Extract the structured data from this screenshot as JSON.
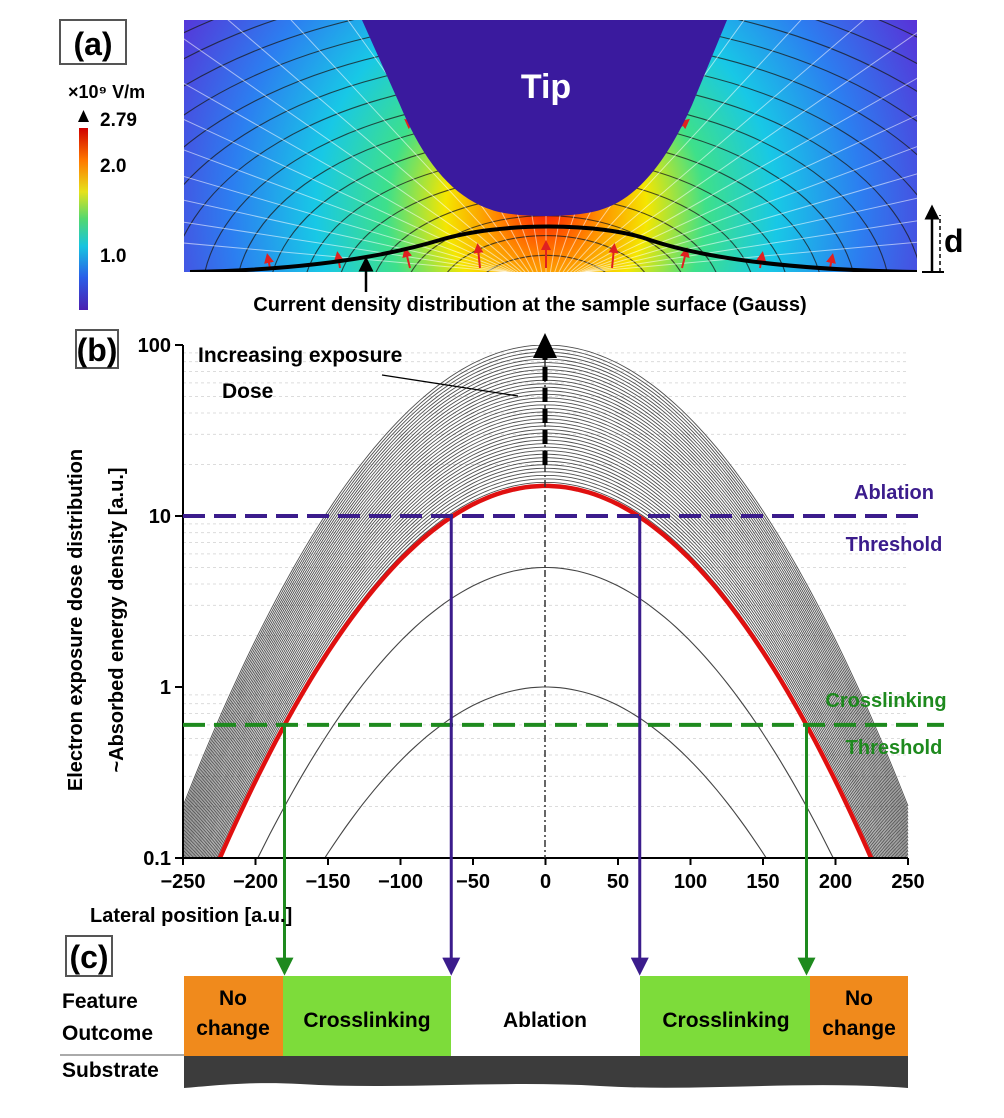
{
  "panel_a": {
    "label": "(a)",
    "colorbar": {
      "unit": "×10⁹ V/m",
      "ticks": [
        "2.79",
        "2.0",
        "1.0"
      ]
    },
    "tip_label": "Tip",
    "distance_label": "d",
    "caption": "Current density distribution at the sample surface (Gauss)"
  },
  "panel_b": {
    "label": "(b)",
    "annotation_line1": "Increasing exposure",
    "annotation_line2": "Dose",
    "ablation_line1": "Ablation",
    "ablation_line2": "Threshold",
    "crosslinking_line1": "Crosslinking",
    "crosslinking_line2": "Threshold",
    "ylabel_line1": "Electron exposure dose distribution",
    "ylabel_line2": "~Absorbed energy density [a.u.]",
    "xlabel": "Lateral position  [a.u.]",
    "yticks": [
      "100",
      "10",
      "1",
      "0.1"
    ],
    "xticks": [
      "−250",
      "−200",
      "−150",
      "−100",
      "−50",
      "0",
      "50",
      "100",
      "150",
      "200",
      "250"
    ]
  },
  "panel_c": {
    "label": "(c)",
    "row_label_line1": "Feature",
    "row_label_line2": "Outcome",
    "substrate_label": "Substrate",
    "no_change_line1": "No",
    "no_change_line2": "change",
    "crosslinking": "Crosslinking",
    "ablation": "Ablation"
  },
  "chart_data": {
    "type": "line",
    "x_range": [
      -250,
      250
    ],
    "y_range": [
      0.1,
      100
    ],
    "y_scale": "log",
    "grid": true,
    "highlighted_curve_peak": 15,
    "ablation_threshold": 10,
    "crosslinking_threshold": 0.6,
    "ablation_crossings_x": [
      -65,
      65
    ],
    "crosslinking_crossings_x": [
      -180,
      180
    ],
    "colors": {
      "highlight": "#e01010",
      "ablation": "#3b1c8c",
      "crosslinking": "#1e8a1e",
      "no_change": "#f08a1c",
      "crosslinking_fill": "#7ddc3a",
      "substrate": "#3c3c3c"
    }
  }
}
